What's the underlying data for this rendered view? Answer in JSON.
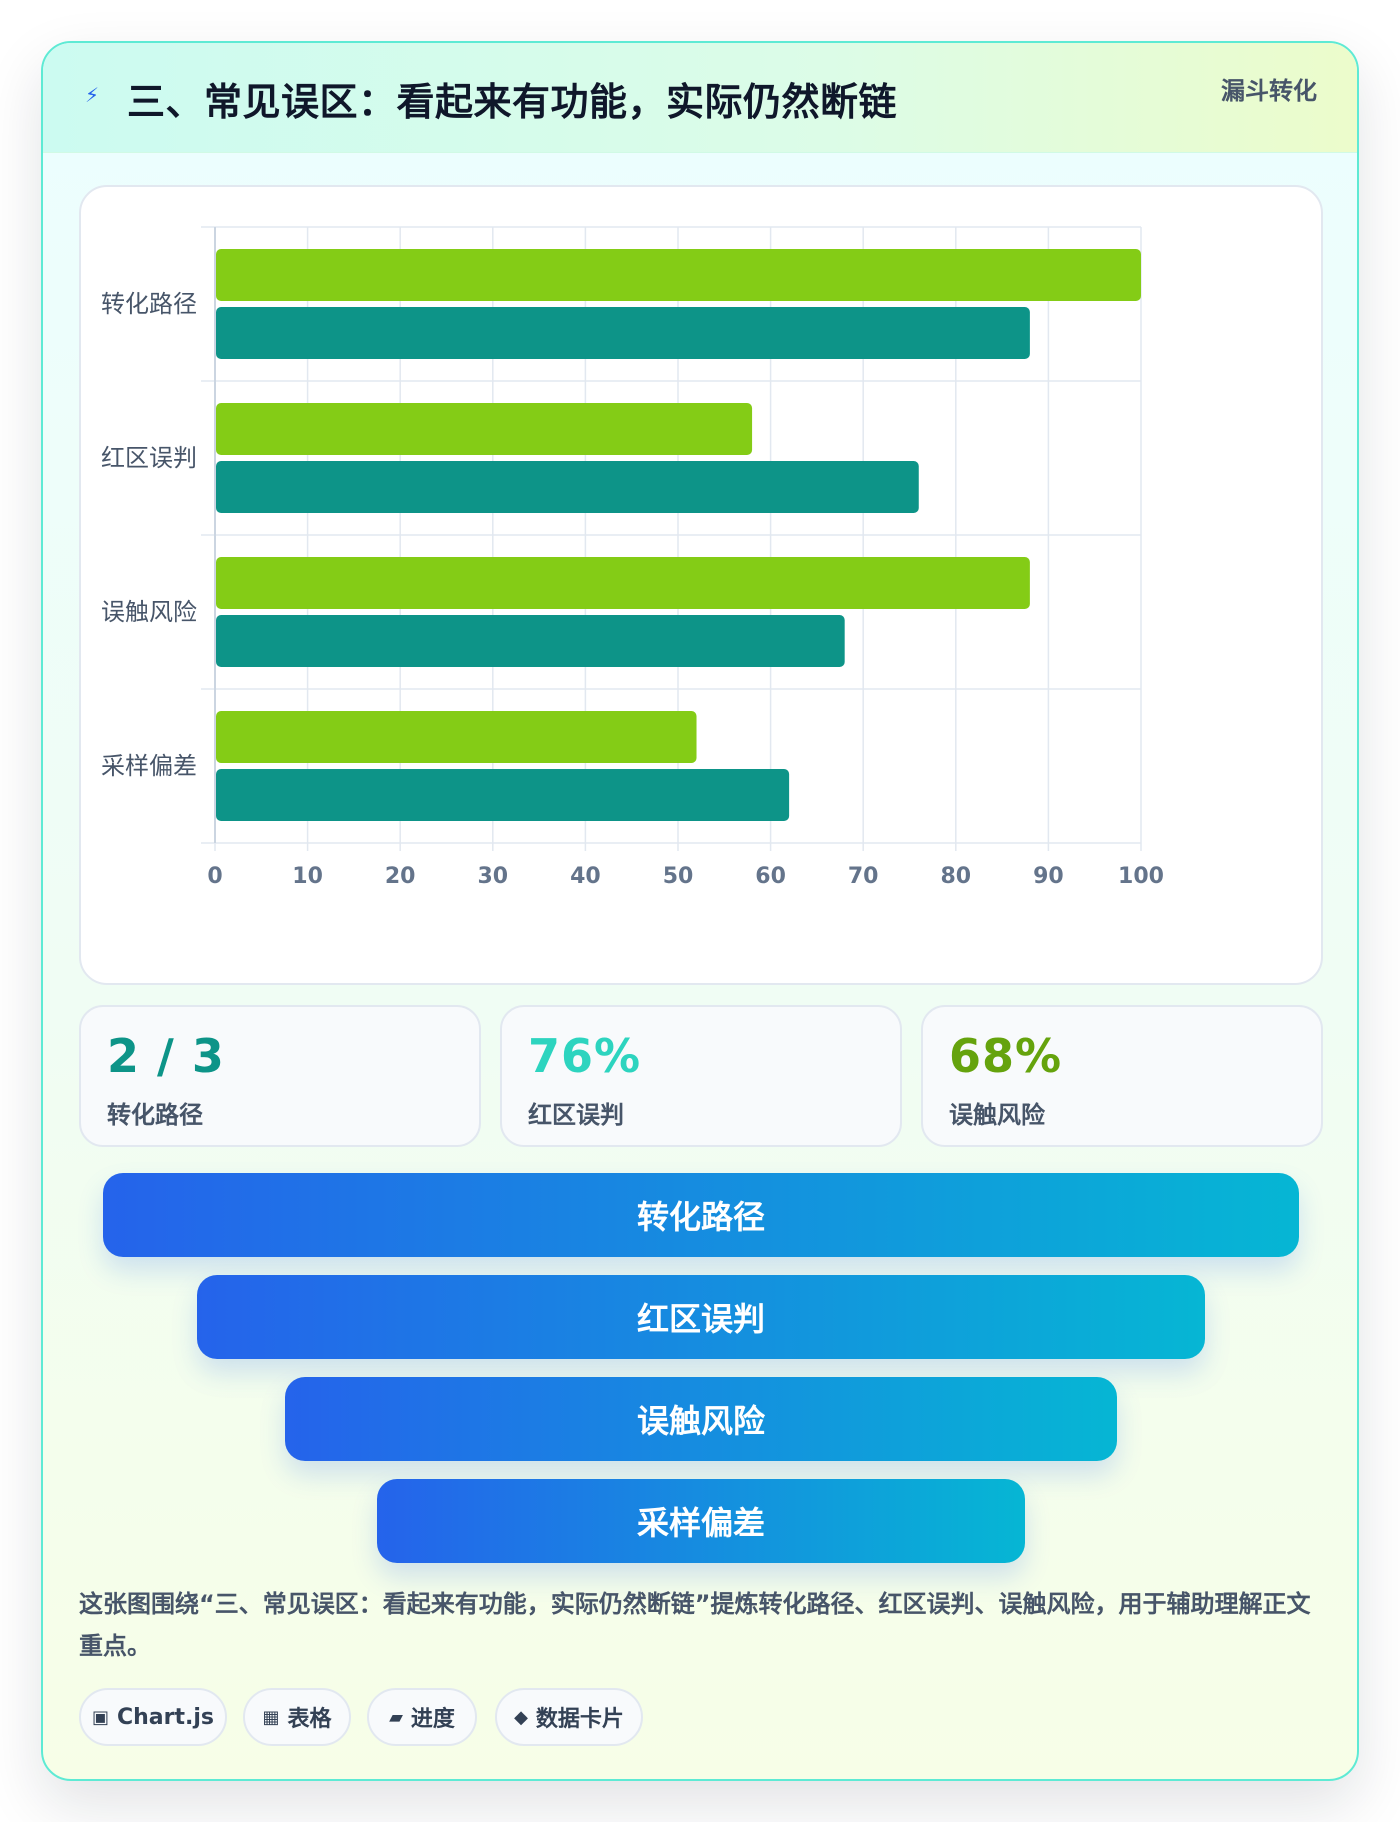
{
  "header": {
    "icon": "lightning-icon",
    "title": "三、常见误区：看起来有功能，实际仍然断链",
    "tag": "漏斗转化"
  },
  "colors": {
    "series1": "#84cc16",
    "series2": "#0d9488",
    "stat1": "#0d9488",
    "stat2": "#2dd4bf",
    "stat3": "#65a30d",
    "funnel_start": "#2563eb",
    "funnel_end": "#06b6d4"
  },
  "chart_data": {
    "type": "bar",
    "orientation": "horizontal",
    "categories": [
      "转化路径",
      "红区误判",
      "误触风险",
      "采样偏差"
    ],
    "series": [
      {
        "values": [
          100,
          58,
          88,
          52
        ]
      },
      {
        "values": [
          88,
          76,
          68,
          62
        ]
      }
    ],
    "xlim": [
      0,
      100
    ],
    "x_ticks": [
      "0",
      "10",
      "20",
      "30",
      "40",
      "50",
      "60",
      "70",
      "80",
      "90",
      "100"
    ],
    "grid": true,
    "legend": "none"
  },
  "stats": [
    {
      "value": "2 / 3",
      "label": "转化路径"
    },
    {
      "value": "76%",
      "label": "红区误判"
    },
    {
      "value": "68%",
      "label": "误触风险"
    }
  ],
  "funnel": [
    "转化路径",
    "红区误判",
    "误触风险",
    "采样偏差"
  ],
  "summary": "这张图围绕“三、常见误区：看起来有功能，实际仍然断链”提炼转化路径、红区误判、误触风险，用于辅助理解正文重点。",
  "chips": [
    {
      "icon": "▣",
      "label": "Chart.js"
    },
    {
      "icon": "▦",
      "label": "表格"
    },
    {
      "icon": "▰",
      "label": "进度"
    },
    {
      "icon": "◆",
      "label": "数据卡片"
    }
  ]
}
